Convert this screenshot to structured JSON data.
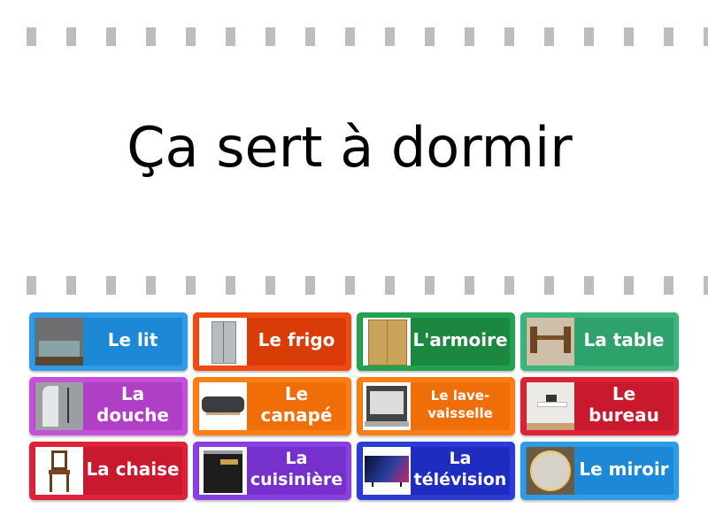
{
  "question": "Ça sert à dormir",
  "tiles": [
    {
      "label": "Le lit",
      "color": "#2f9be6",
      "inner": "#1d88d6",
      "icon": "bed-image"
    },
    {
      "label": "Le frigo",
      "color": "#ef4a12",
      "inner": "#d93c07",
      "icon": "fridge-image"
    },
    {
      "label": "L'armoire",
      "color": "#23a14e",
      "inner": "#1c8740",
      "icon": "wardrobe-image"
    },
    {
      "label": "La table",
      "color": "#3bb57a",
      "inner": "#2ea26a",
      "icon": "table-image"
    },
    {
      "label": "La douche",
      "color": "#c54fd8",
      "inner": "#b03fc6",
      "icon": "shower-image"
    },
    {
      "label": "Le canapé",
      "color": "#fb7d16",
      "inner": "#f06e08",
      "icon": "sofa-image"
    },
    {
      "label": "Le lave-vaisselle",
      "color": "#fb7d16",
      "inner": "#f06e08",
      "icon": "dishwasher-image"
    },
    {
      "label": "Le bureau",
      "color": "#dd2238",
      "inner": "#c8192e",
      "icon": "desk-image"
    },
    {
      "label": "La chaise",
      "color": "#dd2238",
      "inner": "#c8192e",
      "icon": "chair-image"
    },
    {
      "label": "La cuisinière",
      "color": "#8a3fe0",
      "inner": "#7630cc",
      "icon": "stove-image"
    },
    {
      "label": "La télévision",
      "color": "#2b3bd6",
      "inner": "#1f2cc0",
      "icon": "television-image"
    },
    {
      "label": "Le miroir",
      "color": "#2f9be6",
      "inner": "#1d88d6",
      "icon": "mirror-image"
    }
  ]
}
